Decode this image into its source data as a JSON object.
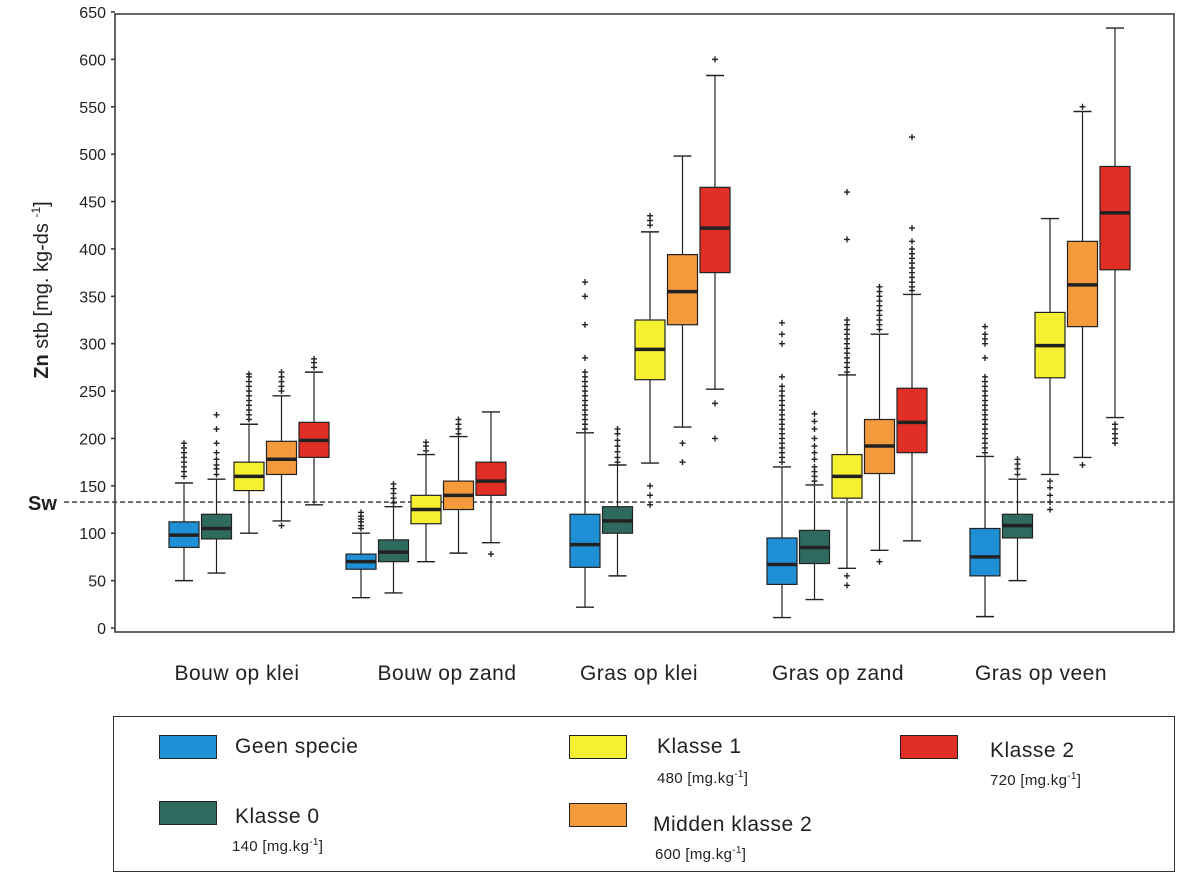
{
  "chart_data": {
    "type": "box",
    "ylabel_bold": "Zn",
    "ylabel_rest": " stb [mg. kg-ds ",
    "ylabel_sup": "-1",
    "ylabel_close": "]",
    "ylim": [
      0,
      650
    ],
    "yticks": [
      "0",
      "50",
      "100",
      "150",
      "200",
      "250",
      "300",
      "350",
      "400",
      "450",
      "500",
      "550",
      "600",
      "650"
    ],
    "reference_line": {
      "label": "Sw",
      "value": 135
    },
    "categories": [
      "Bouw op klei",
      "Bouw op zand",
      "Gras op klei",
      "Gras op zand",
      "Gras op veen"
    ],
    "series": [
      {
        "name": "Geen specie",
        "color": "#1f8fd6",
        "boxes": [
          {
            "whislo": 50,
            "q1": 85,
            "med": 98,
            "q3": 112,
            "whishi": 153,
            "fliers": [
              160,
              165,
              170,
              175,
              180,
              185,
              190,
              195
            ]
          },
          {
            "whislo": 32,
            "q1": 62,
            "med": 70,
            "q3": 78,
            "whishi": 100,
            "fliers": [
              105,
              108,
              112,
              115,
              118,
              122
            ]
          },
          {
            "whislo": 22,
            "q1": 64,
            "med": 88,
            "q3": 120,
            "whishi": 206,
            "fliers": [
              210,
              215,
              220,
              225,
              230,
              235,
              240,
              245,
              250,
              255,
              260,
              265,
              270,
              285,
              320,
              350,
              365
            ]
          },
          {
            "whislo": 11,
            "q1": 46,
            "med": 67,
            "q3": 95,
            "whishi": 170,
            "fliers": [
              175,
              180,
              185,
              190,
              195,
              200,
              205,
              210,
              215,
              220,
              225,
              230,
              235,
              240,
              245,
              250,
              255,
              265,
              300,
              310,
              322
            ]
          },
          {
            "whislo": 12,
            "q1": 55,
            "med": 75,
            "q3": 105,
            "whishi": 181,
            "fliers": [
              185,
              190,
              195,
              200,
              205,
              210,
              215,
              220,
              225,
              230,
              235,
              240,
              245,
              250,
              255,
              260,
              265,
              285,
              300,
              305,
              310,
              318
            ]
          }
        ]
      },
      {
        "name": "Klasse 0",
        "color": "#2f6a5e",
        "boxes": [
          {
            "whislo": 58,
            "q1": 94,
            "med": 105,
            "q3": 120,
            "whishi": 157,
            "fliers": [
              162,
              168,
              172,
              178,
              185,
              195,
              210,
              225
            ]
          },
          {
            "whislo": 37,
            "q1": 70,
            "med": 80,
            "q3": 93,
            "whishi": 128,
            "fliers": [
              132,
              137,
              142,
              147,
              152
            ]
          },
          {
            "whislo": 55,
            "q1": 100,
            "med": 113,
            "q3": 128,
            "whishi": 172,
            "fliers": [
              175,
              180,
              186,
              192,
              198,
              205,
              210
            ]
          },
          {
            "whislo": 30,
            "q1": 68,
            "med": 85,
            "q3": 103,
            "whishi": 151,
            "fliers": [
              155,
              160,
              165,
              170,
              178,
              185,
              192,
              200,
              210,
              218,
              226
            ]
          },
          {
            "whislo": 50,
            "q1": 95,
            "med": 108,
            "q3": 120,
            "whishi": 157,
            "fliers": [
              162,
              168,
              173,
              178
            ]
          }
        ]
      },
      {
        "name": "Klasse 1",
        "color": "#f6f033",
        "boxes": [
          {
            "whislo": 100,
            "q1": 145,
            "med": 160,
            "q3": 175,
            "whishi": 215,
            "fliers": [
              220,
              225,
              230,
              235,
              240,
              245,
              250,
              255,
              260,
              265,
              268
            ]
          },
          {
            "whislo": 70,
            "q1": 110,
            "med": 125,
            "q3": 140,
            "whishi": 183,
            "fliers": [
              187,
              192,
              196
            ]
          },
          {
            "whislo": 174,
            "q1": 262,
            "med": 294,
            "q3": 325,
            "whishi": 418,
            "fliers": [
              130,
              140,
              150,
              425,
              430,
              435
            ]
          },
          {
            "whislo": 63,
            "q1": 137,
            "med": 160,
            "q3": 183,
            "whishi": 267,
            "fliers": [
              45,
              55,
              270,
              275,
              280,
              285,
              290,
              295,
              300,
              305,
              310,
              315,
              320,
              325,
              410,
              460
            ]
          },
          {
            "whislo": 162,
            "q1": 264,
            "med": 298,
            "q3": 333,
            "whishi": 432,
            "fliers": [
              125,
              133,
              140,
              148,
              155
            ]
          }
        ]
      },
      {
        "name": "Midden klasse 2",
        "color": "#f59a3c",
        "boxes": [
          {
            "whislo": 113,
            "q1": 162,
            "med": 178,
            "q3": 197,
            "whishi": 245,
            "fliers": [
              108,
              250,
              255,
              260,
              265,
              270
            ]
          },
          {
            "whislo": 79,
            "q1": 125,
            "med": 140,
            "q3": 155,
            "whishi": 202,
            "fliers": [
              205,
              210,
              215,
              220
            ]
          },
          {
            "whislo": 212,
            "q1": 320,
            "med": 355,
            "q3": 394,
            "whishi": 498,
            "fliers": [
              175,
              195
            ]
          },
          {
            "whislo": 82,
            "q1": 163,
            "med": 192,
            "q3": 220,
            "whishi": 310,
            "fliers": [
              70,
              315,
              320,
              325,
              330,
              335,
              340,
              345,
              350,
              355,
              360
            ]
          },
          {
            "whislo": 180,
            "q1": 318,
            "med": 362,
            "q3": 408,
            "whishi": 545,
            "fliers": [
              172,
              550
            ]
          }
        ]
      },
      {
        "name": "Klasse 2",
        "color": "#e12f26",
        "boxes": [
          {
            "whislo": 130,
            "q1": 180,
            "med": 198,
            "q3": 217,
            "whishi": 270,
            "fliers": [
              275,
              280,
              284
            ]
          },
          {
            "whislo": 90,
            "q1": 140,
            "med": 155,
            "q3": 175,
            "whishi": 228,
            "fliers": [
              78
            ]
          },
          {
            "whislo": 252,
            "q1": 375,
            "med": 422,
            "q3": 465,
            "whishi": 583,
            "fliers": [
              200,
              237,
              600
            ]
          },
          {
            "whislo": 92,
            "q1": 185,
            "med": 217,
            "q3": 253,
            "whishi": 352,
            "fliers": [
              356,
              360,
              365,
              370,
              375,
              380,
              385,
              390,
              395,
              400,
              408,
              422,
              518
            ]
          },
          {
            "whislo": 222,
            "q1": 378,
            "med": 438,
            "q3": 487,
            "whishi": 633,
            "fliers": [
              195,
              200,
              205,
              210,
              215
            ]
          }
        ]
      }
    ]
  },
  "legend": [
    {
      "label": "Geen specie",
      "sub": "",
      "color": "#1f8fd6"
    },
    {
      "label": "Klasse 0",
      "sub": "140 [mg.kg",
      "sub_sup": "-1",
      "sub_close": "]",
      "color": "#2f6a5e"
    },
    {
      "label": "Klasse 1",
      "sub": "480 [mg.kg",
      "sub_sup": "-1",
      "sub_close": "]",
      "color": "#f6f033"
    },
    {
      "label": "Midden klasse 2",
      "sub": "600 [mg.kg",
      "sub_sup": "-1",
      "sub_close": "]",
      "color": "#f59a3c"
    },
    {
      "label": "Klasse 2",
      "sub": "720 [mg.kg",
      "sub_sup": "-1",
      "sub_close": "]",
      "color": "#e12f26"
    }
  ]
}
